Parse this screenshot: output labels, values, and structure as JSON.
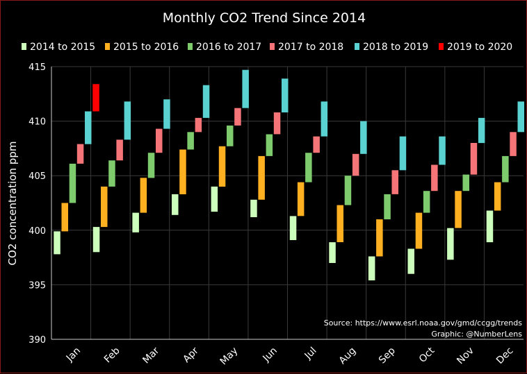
{
  "chart_data": {
    "type": "bar",
    "subtype": "floating-range",
    "title": "Monthly CO2 Trend Since 2014",
    "xlabel": "",
    "ylabel": "CO2 concentration ppm",
    "ylim": [
      390,
      415
    ],
    "yticks": [
      "390",
      "395",
      "400",
      "405",
      "410",
      "415"
    ],
    "grid": true,
    "legend_position": "top",
    "categories": [
      "Jan",
      "Feb",
      "Mar",
      "Apr",
      "May",
      "Jun",
      "Jul",
      "Aug",
      "Sep",
      "Oct",
      "Nov",
      "Dec"
    ],
    "series": [
      {
        "name": "2014 to 2015",
        "color": "#ccffbb",
        "ranges": [
          [
            397.8,
            399.9
          ],
          [
            398.0,
            400.3
          ],
          [
            399.8,
            401.6
          ],
          [
            401.4,
            403.3
          ],
          [
            401.7,
            404.0
          ],
          [
            401.2,
            402.8
          ],
          [
            399.1,
            401.3
          ],
          [
            397.0,
            398.9
          ],
          [
            395.4,
            397.6
          ],
          [
            396.0,
            398.3
          ],
          [
            397.3,
            400.2
          ],
          [
            398.9,
            401.8
          ]
        ]
      },
      {
        "name": "2015 to 2016",
        "color": "#ffb020",
        "ranges": [
          [
            399.9,
            402.5
          ],
          [
            400.3,
            404.0
          ],
          [
            401.6,
            404.8
          ],
          [
            403.3,
            407.4
          ],
          [
            404.0,
            407.7
          ],
          [
            402.8,
            406.8
          ],
          [
            401.3,
            404.4
          ],
          [
            398.9,
            402.3
          ],
          [
            397.6,
            401.0
          ],
          [
            398.3,
            401.6
          ],
          [
            400.2,
            403.6
          ],
          [
            401.8,
            404.4
          ]
        ]
      },
      {
        "name": "2016 to 2017",
        "color": "#7ecb6e",
        "ranges": [
          [
            402.5,
            406.1
          ],
          [
            404.0,
            406.4
          ],
          [
            404.8,
            407.1
          ],
          [
            407.4,
            409.0
          ],
          [
            407.7,
            409.6
          ],
          [
            406.8,
            408.8
          ],
          [
            404.4,
            407.1
          ],
          [
            402.3,
            405.0
          ],
          [
            401.0,
            403.3
          ],
          [
            401.6,
            403.6
          ],
          [
            403.6,
            405.1
          ],
          [
            404.4,
            406.8
          ]
        ]
      },
      {
        "name": "2017 to 2018",
        "color": "#f47478",
        "ranges": [
          [
            406.1,
            407.9
          ],
          [
            406.4,
            408.3
          ],
          [
            407.1,
            409.3
          ],
          [
            409.0,
            410.3
          ],
          [
            409.6,
            411.2
          ],
          [
            408.8,
            410.8
          ],
          [
            407.1,
            408.6
          ],
          [
            405.0,
            407.0
          ],
          [
            403.3,
            405.5
          ],
          [
            403.6,
            406.0
          ],
          [
            405.1,
            408.0
          ],
          [
            406.8,
            409.0
          ]
        ]
      },
      {
        "name": "2018 to 2019",
        "color": "#5ad2d2",
        "ranges": [
          [
            407.9,
            410.9
          ],
          [
            408.3,
            411.8
          ],
          [
            409.3,
            412.0
          ],
          [
            410.3,
            413.3
          ],
          [
            411.2,
            414.7
          ],
          [
            410.8,
            413.9
          ],
          [
            408.6,
            411.8
          ],
          [
            407.0,
            410.0
          ],
          [
            405.5,
            408.6
          ],
          [
            406.0,
            408.6
          ],
          [
            408.0,
            410.3
          ],
          [
            409.0,
            411.8
          ]
        ]
      },
      {
        "name": "2019 to 2020",
        "color": "#ff0000",
        "ranges": [
          [
            410.9,
            413.4
          ],
          null,
          null,
          null,
          null,
          null,
          null,
          null,
          null,
          null,
          null,
          null
        ]
      }
    ],
    "annotations": [
      "Source: https://www.esrl.noaa.gov/gmd/ccgg/trends",
      "Graphic: @NumberLens"
    ]
  }
}
